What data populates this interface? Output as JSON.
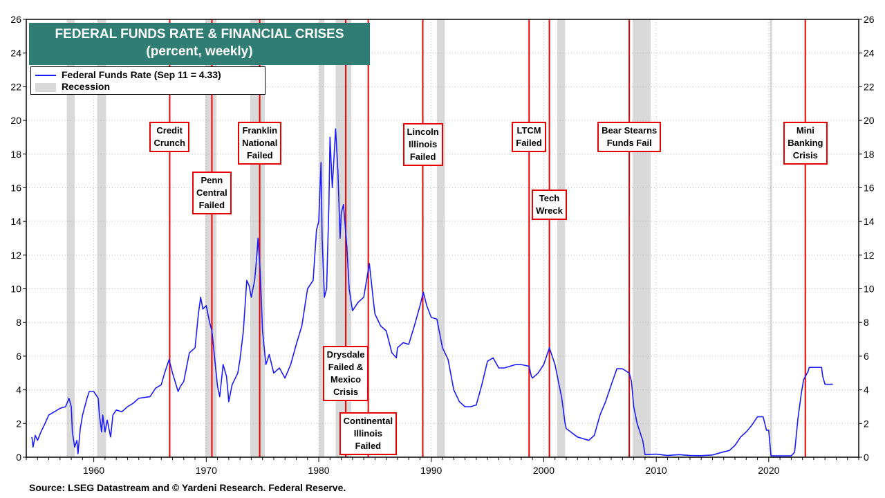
{
  "title_line1": "FEDERAL FUNDS RATE & FINANCIAL CRISES",
  "title_line2": "(percent, weekly)",
  "legend": {
    "series": "Federal Funds Rate (Sep 11 = 4.33)",
    "recession": "Recession"
  },
  "source": "Source: LSEG Datastream and © Yardeni Research. Federal Reserve.",
  "colors": {
    "series": "#1a1aff",
    "recession": "#d9d9d9",
    "crisis": "#e60000",
    "title_bg": "#2f7d73"
  },
  "annotations": [
    {
      "year": 1966.75,
      "lines": [
        "Credit",
        "Crunch"
      ]
    },
    {
      "year": 1970.5,
      "lines": [
        "Penn",
        "Central",
        "Failed"
      ]
    },
    {
      "year": 1974.75,
      "lines": [
        "Franklin",
        "National",
        "Failed"
      ]
    },
    {
      "year": 1982.4,
      "lines": [
        "Drysdale",
        "Failed &",
        "Mexico",
        "Crisis"
      ]
    },
    {
      "year": 1984.4,
      "lines": [
        "Continental",
        "Illinois",
        "Failed"
      ]
    },
    {
      "year": 1989.25,
      "lines": [
        "Lincoln",
        "Illinois",
        "Failed"
      ]
    },
    {
      "year": 1998.7,
      "lines": [
        "LTCM",
        "Failed"
      ]
    },
    {
      "year": 2000.5,
      "lines": [
        "Tech",
        "Wreck"
      ]
    },
    {
      "year": 2007.6,
      "lines": [
        "Bear Stearns",
        "Funds Fail"
      ]
    },
    {
      "year": 2023.25,
      "lines": [
        "Mini",
        "Banking",
        "Crisis"
      ]
    }
  ],
  "chart_data": {
    "type": "line",
    "title": "FEDERAL FUNDS RATE & FINANCIAL CRISES",
    "subtitle": "(percent, weekly)",
    "xlim": [
      1954,
      2028
    ],
    "ylim": [
      0,
      26
    ],
    "yticks": [
      0,
      2,
      4,
      6,
      8,
      10,
      12,
      14,
      16,
      18,
      20,
      22,
      24,
      26
    ],
    "xticks": [
      1960,
      1970,
      1980,
      1990,
      2000,
      2010,
      2020
    ],
    "grid": true,
    "recessions": [
      [
        1957.6,
        1958.3
      ],
      [
        1960.3,
        1961.1
      ],
      [
        1969.9,
        1970.9
      ],
      [
        1973.9,
        1975.2
      ],
      [
        1980.0,
        1980.5
      ],
      [
        1981.5,
        1982.9
      ],
      [
        1990.5,
        1991.2
      ],
      [
        2001.2,
        2001.9
      ],
      [
        2007.9,
        2009.5
      ],
      [
        2020.1,
        2020.3
      ]
    ],
    "crisis_lines": [
      1966.75,
      1970.5,
      1974.75,
      1982.4,
      1984.4,
      1989.25,
      1998.7,
      2000.5,
      2007.6,
      2023.25
    ],
    "series": [
      {
        "name": "Federal Funds Rate (Sep 11 = 4.33)",
        "points": [
          [
            1954.5,
            1.2
          ],
          [
            1954.6,
            0.6
          ],
          [
            1954.8,
            1.3
          ],
          [
            1955.0,
            1.0
          ],
          [
            1955.3,
            1.5
          ],
          [
            1955.6,
            1.9
          ],
          [
            1956.0,
            2.5
          ],
          [
            1956.5,
            2.7
          ],
          [
            1957.0,
            2.9
          ],
          [
            1957.5,
            3.0
          ],
          [
            1957.8,
            3.5
          ],
          [
            1958.0,
            3.0
          ],
          [
            1958.1,
            1.5
          ],
          [
            1958.3,
            0.6
          ],
          [
            1958.5,
            1.0
          ],
          [
            1958.6,
            0.2
          ],
          [
            1958.8,
            1.7
          ],
          [
            1959.0,
            2.5
          ],
          [
            1959.4,
            3.5
          ],
          [
            1959.6,
            3.9
          ],
          [
            1960.0,
            3.9
          ],
          [
            1960.4,
            3.5
          ],
          [
            1960.5,
            2.5
          ],
          [
            1960.7,
            1.5
          ],
          [
            1960.8,
            2.5
          ],
          [
            1961.0,
            1.5
          ],
          [
            1961.2,
            2.2
          ],
          [
            1961.5,
            1.2
          ],
          [
            1961.7,
            2.5
          ],
          [
            1962.0,
            2.8
          ],
          [
            1962.5,
            2.7
          ],
          [
            1963.0,
            3.0
          ],
          [
            1963.5,
            3.2
          ],
          [
            1964.0,
            3.5
          ],
          [
            1965.0,
            3.6
          ],
          [
            1965.5,
            4.1
          ],
          [
            1966.0,
            4.3
          ],
          [
            1966.3,
            5.0
          ],
          [
            1966.7,
            5.8
          ],
          [
            1967.0,
            5.0
          ],
          [
            1967.5,
            3.9
          ],
          [
            1967.7,
            4.2
          ],
          [
            1968.0,
            4.5
          ],
          [
            1968.5,
            6.2
          ],
          [
            1969.0,
            6.5
          ],
          [
            1969.3,
            8.5
          ],
          [
            1969.5,
            9.5
          ],
          [
            1969.7,
            8.8
          ],
          [
            1970.0,
            9.0
          ],
          [
            1970.3,
            8.0
          ],
          [
            1970.5,
            7.5
          ],
          [
            1970.7,
            6.2
          ],
          [
            1971.0,
            4.2
          ],
          [
            1971.2,
            3.6
          ],
          [
            1971.5,
            5.5
          ],
          [
            1971.8,
            4.8
          ],
          [
            1972.0,
            3.3
          ],
          [
            1972.3,
            4.3
          ],
          [
            1972.8,
            5.0
          ],
          [
            1973.0,
            5.8
          ],
          [
            1973.3,
            7.5
          ],
          [
            1973.6,
            10.5
          ],
          [
            1973.8,
            10.2
          ],
          [
            1974.0,
            9.5
          ],
          [
            1974.3,
            10.5
          ],
          [
            1974.5,
            12.0
          ],
          [
            1974.6,
            13.0
          ],
          [
            1974.8,
            11.0
          ],
          [
            1975.0,
            7.5
          ],
          [
            1975.3,
            5.5
          ],
          [
            1975.6,
            6.1
          ],
          [
            1976.0,
            5.0
          ],
          [
            1976.5,
            5.3
          ],
          [
            1977.0,
            4.7
          ],
          [
            1977.5,
            5.5
          ],
          [
            1978.0,
            6.7
          ],
          [
            1978.5,
            7.8
          ],
          [
            1979.0,
            10.0
          ],
          [
            1979.5,
            10.5
          ],
          [
            1979.8,
            13.5
          ],
          [
            1980.0,
            14.0
          ],
          [
            1980.2,
            17.5
          ],
          [
            1980.3,
            13.0
          ],
          [
            1980.5,
            9.5
          ],
          [
            1980.7,
            10.0
          ],
          [
            1980.9,
            15.0
          ],
          [
            1981.0,
            19.0
          ],
          [
            1981.2,
            16.0
          ],
          [
            1981.5,
            19.5
          ],
          [
            1981.7,
            17.0
          ],
          [
            1981.9,
            13.0
          ],
          [
            1982.0,
            14.5
          ],
          [
            1982.2,
            15.0
          ],
          [
            1982.5,
            12.5
          ],
          [
            1982.7,
            10.0
          ],
          [
            1983.0,
            8.7
          ],
          [
            1983.5,
            9.2
          ],
          [
            1984.0,
            9.5
          ],
          [
            1984.5,
            11.5
          ],
          [
            1984.9,
            9.0
          ],
          [
            1985.0,
            8.5
          ],
          [
            1985.5,
            7.8
          ],
          [
            1986.0,
            7.5
          ],
          [
            1986.5,
            6.2
          ],
          [
            1986.9,
            5.9
          ],
          [
            1987.0,
            6.5
          ],
          [
            1987.5,
            6.8
          ],
          [
            1988.0,
            6.7
          ],
          [
            1988.5,
            7.8
          ],
          [
            1989.0,
            9.0
          ],
          [
            1989.3,
            9.8
          ],
          [
            1989.6,
            9.0
          ],
          [
            1990.0,
            8.3
          ],
          [
            1990.5,
            8.2
          ],
          [
            1991.0,
            6.5
          ],
          [
            1991.5,
            5.8
          ],
          [
            1992.0,
            4.0
          ],
          [
            1992.5,
            3.3
          ],
          [
            1993.0,
            3.0
          ],
          [
            1993.5,
            3.0
          ],
          [
            1994.0,
            3.1
          ],
          [
            1994.5,
            4.3
          ],
          [
            1995.0,
            5.7
          ],
          [
            1995.5,
            5.9
          ],
          [
            1996.0,
            5.3
          ],
          [
            1996.5,
            5.3
          ],
          [
            1997.0,
            5.4
          ],
          [
            1997.5,
            5.5
          ],
          [
            1998.0,
            5.5
          ],
          [
            1998.7,
            5.4
          ],
          [
            1998.9,
            4.8
          ],
          [
            1999.0,
            4.7
          ],
          [
            1999.5,
            5.0
          ],
          [
            2000.0,
            5.5
          ],
          [
            2000.5,
            6.5
          ],
          [
            2001.0,
            5.5
          ],
          [
            2001.3,
            4.5
          ],
          [
            2001.6,
            3.5
          ],
          [
            2001.9,
            2.0
          ],
          [
            2002.0,
            1.7
          ],
          [
            2003.0,
            1.2
          ],
          [
            2004.0,
            1.0
          ],
          [
            2004.5,
            1.3
          ],
          [
            2005.0,
            2.5
          ],
          [
            2005.5,
            3.3
          ],
          [
            2006.0,
            4.3
          ],
          [
            2006.5,
            5.25
          ],
          [
            2007.0,
            5.25
          ],
          [
            2007.6,
            5.0
          ],
          [
            2007.8,
            4.5
          ],
          [
            2008.0,
            3.0
          ],
          [
            2008.3,
            2.0
          ],
          [
            2008.8,
            1.0
          ],
          [
            2009.0,
            0.15
          ],
          [
            2010.0,
            0.18
          ],
          [
            2011.0,
            0.1
          ],
          [
            2012.0,
            0.15
          ],
          [
            2013.0,
            0.1
          ],
          [
            2014.0,
            0.09
          ],
          [
            2015.0,
            0.13
          ],
          [
            2015.9,
            0.3
          ],
          [
            2016.5,
            0.4
          ],
          [
            2017.0,
            0.7
          ],
          [
            2017.5,
            1.2
          ],
          [
            2018.0,
            1.5
          ],
          [
            2018.5,
            1.9
          ],
          [
            2019.0,
            2.4
          ],
          [
            2019.5,
            2.4
          ],
          [
            2019.8,
            1.6
          ],
          [
            2020.0,
            1.6
          ],
          [
            2020.2,
            0.08
          ],
          [
            2021.0,
            0.08
          ],
          [
            2022.0,
            0.08
          ],
          [
            2022.3,
            0.3
          ],
          [
            2022.6,
            2.3
          ],
          [
            2022.9,
            3.8
          ],
          [
            2023.1,
            4.6
          ],
          [
            2023.5,
            5.1
          ],
          [
            2023.6,
            5.33
          ],
          [
            2024.0,
            5.33
          ],
          [
            2024.7,
            5.33
          ],
          [
            2024.8,
            4.8
          ],
          [
            2025.0,
            4.33
          ],
          [
            2025.7,
            4.33
          ]
        ]
      }
    ]
  }
}
